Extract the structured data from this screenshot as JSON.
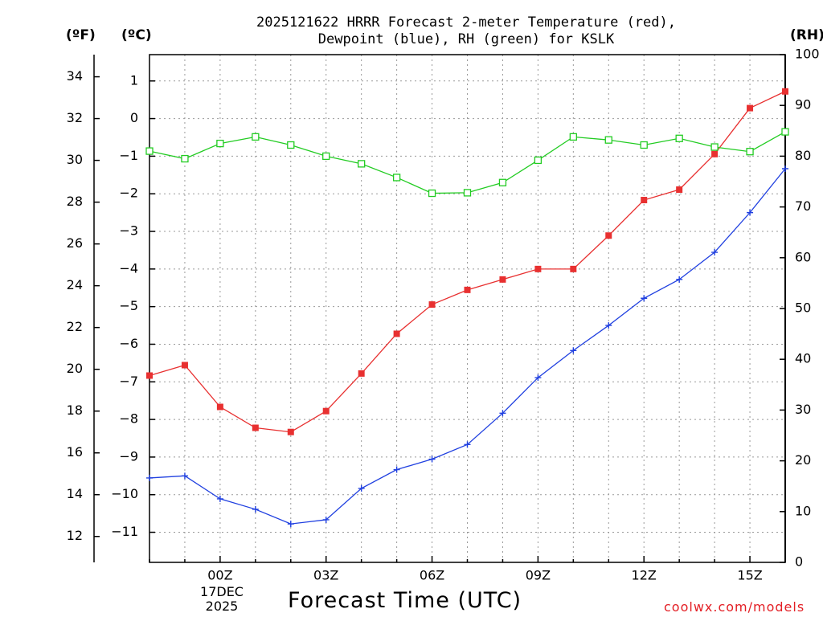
{
  "chart_data": {
    "type": "line",
    "title": [
      "2025121622 HRRR Forecast 2-meter Temperature (red),",
      "Dewpoint (blue), RH (green) for KSLK"
    ],
    "axes": {
      "fahrenheit_label": "(ºF)",
      "celsius_label": "(ºC)",
      "rh_label": "(RH)",
      "fahrenheit_ticks": [
        "34",
        "32",
        "30",
        "28",
        "26",
        "24",
        "22",
        "20",
        "18",
        "16",
        "14",
        "12"
      ],
      "fahrenheit_values": [
        34,
        32,
        30,
        28,
        26,
        24,
        22,
        20,
        18,
        16,
        14,
        12
      ],
      "celsius_ticks": [
        "1",
        "0",
        "−1",
        "−2",
        "−3",
        "−4",
        "−5",
        "−6",
        "−7",
        "−8",
        "−9",
        "−10",
        "−11"
      ],
      "celsius_values": [
        1,
        0,
        -1,
        -2,
        -3,
        -4,
        -5,
        -6,
        -7,
        -8,
        -9,
        -10,
        -11
      ],
      "rh_ticks": [
        "100",
        "90",
        "80",
        "70",
        "60",
        "50",
        "40",
        "30",
        "20",
        "10",
        "0"
      ],
      "rh_values": [
        100,
        90,
        80,
        70,
        60,
        50,
        40,
        30,
        20,
        10,
        0
      ],
      "x_range_hours": [
        -2,
        16
      ],
      "celsius_range": [
        -11.8,
        1.7
      ],
      "rh_range": [
        0,
        100
      ]
    },
    "x_tick_labels": [
      "00Z",
      "03Z",
      "06Z",
      "09Z",
      "12Z",
      "15Z"
    ],
    "x_tick_hours": [
      0,
      3,
      6,
      9,
      12,
      15
    ],
    "date_label": [
      "17DEC",
      "2025"
    ],
    "xlabel": "Forecast Time (UTC)",
    "credit": "coolwx.com/models",
    "x": [
      -2,
      -1,
      0,
      1,
      2,
      3,
      4,
      5,
      6,
      7,
      8,
      9,
      10,
      11,
      12,
      13,
      14,
      15,
      16
    ],
    "series": [
      {
        "name": "Temperature",
        "color": "#e83030",
        "marker": "filled-square",
        "unit": "°F",
        "values": [
          19.7,
          20.2,
          18.2,
          17.2,
          17.0,
          18.0,
          19.8,
          21.7,
          23.1,
          23.8,
          24.3,
          24.8,
          24.8,
          26.4,
          28.1,
          28.6,
          30.3,
          32.5,
          33.3
        ]
      },
      {
        "name": "Dewpoint",
        "color": "#2040e0",
        "marker": "plus",
        "unit": "°F",
        "values": [
          14.8,
          14.9,
          13.8,
          13.3,
          12.6,
          12.8,
          14.3,
          15.2,
          15.7,
          16.4,
          17.9,
          19.6,
          20.9,
          22.1,
          23.4,
          24.3,
          25.6,
          27.5,
          29.6
        ]
      },
      {
        "name": "RH",
        "color": "#22cc22",
        "marker": "open-square",
        "unit": "%",
        "values": [
          81,
          79.5,
          82.5,
          83.8,
          82.2,
          80,
          78.5,
          75.8,
          72.7,
          72.8,
          74.8,
          79.2,
          83.8,
          83.2,
          82.2,
          83.5,
          81.8,
          80.9,
          84.8
        ]
      }
    ]
  }
}
